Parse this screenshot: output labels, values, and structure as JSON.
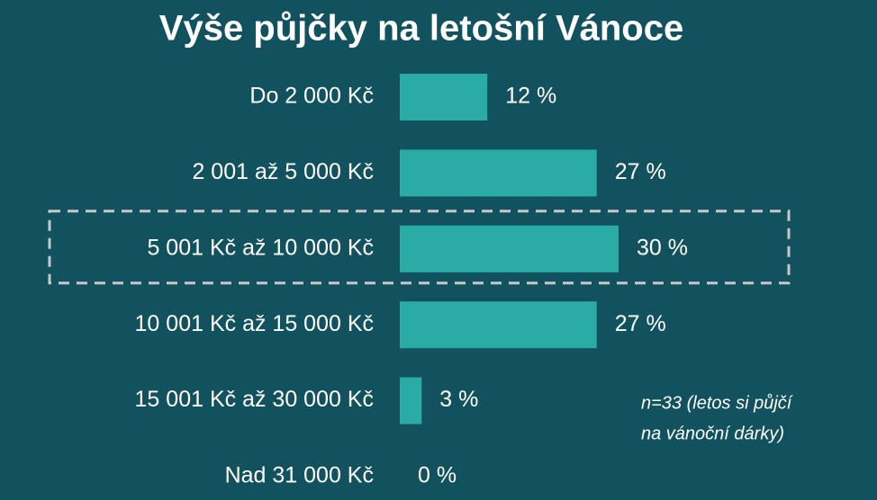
{
  "chart_data": {
    "type": "bar",
    "orientation": "horizontal",
    "title": "Výše půjčky na letošní Vánoce",
    "categories": [
      "Do 2 000 Kč",
      "2 001 až 5 000 Kč",
      "5 001 Kč až 10 000 Kč",
      "10 001 Kč až 15 000 Kč",
      "15 001 Kč až 30 000 Kč",
      "Nad 31 000 Kč"
    ],
    "values": [
      12,
      27,
      30,
      27,
      3,
      0
    ],
    "value_labels": [
      "12 %",
      "27 %",
      "30 %",
      "27 %",
      "3 %",
      "0 %"
    ],
    "color": "#2aaba5",
    "highlight_index": 2,
    "annotation": [
      "n=33 (letos si půjčí",
      "na vánoční dárky)"
    ]
  }
}
